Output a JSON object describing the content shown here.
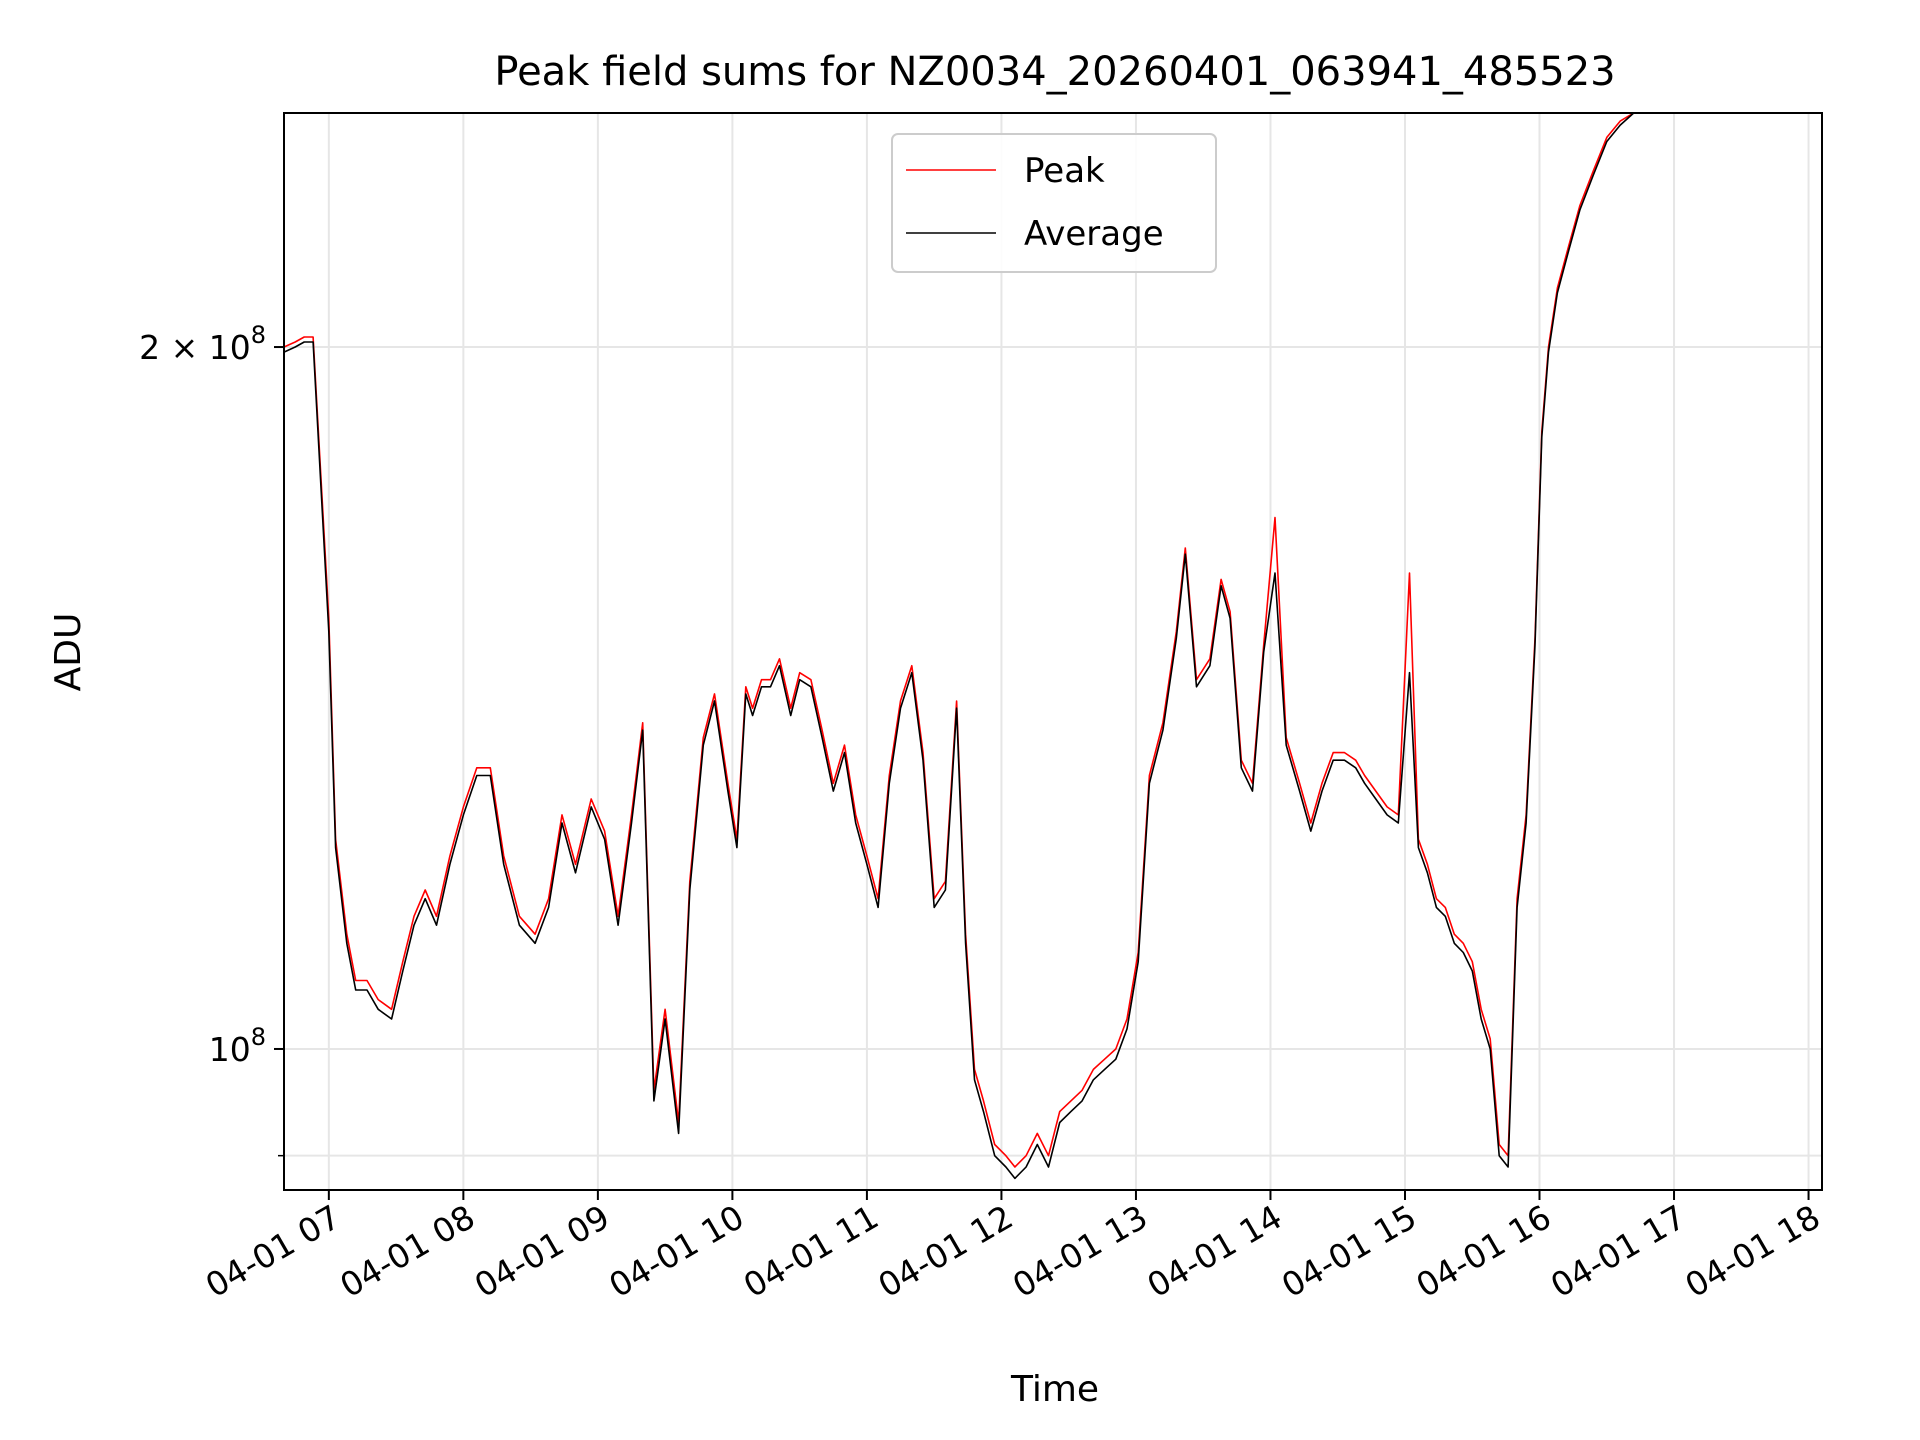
{
  "chart_data": {
    "type": "line",
    "title": "Peak field sums for NZ0034_20260401_063941_485523",
    "xlabel": "Time",
    "ylabel": "ADU",
    "yscale": "log",
    "xlim": [
      "04-01 06:40",
      "04-01 18:06"
    ],
    "ylim": [
      87000000,
      252000000
    ],
    "grid": true,
    "legend_position": "top-center",
    "xticks": [
      "04-01 07",
      "04-01 08",
      "04-01 09",
      "04-01 10",
      "04-01 11",
      "04-01 12",
      "04-01 13",
      "04-01 14",
      "04-01 15",
      "04-01 16",
      "04-01 17",
      "04-01 18"
    ],
    "yticks": [
      {
        "value": 100000000,
        "mantissa": "",
        "exponent": "8"
      },
      {
        "value": 200000000,
        "mantissa": "2",
        "exponent": "8"
      }
    ],
    "x": [
      "06:40",
      "06:45",
      "06:49",
      "06:53",
      "07:00",
      "07:03",
      "07:08",
      "07:12",
      "07:17",
      "07:22",
      "07:28",
      "07:33",
      "07:38",
      "07:43",
      "07:48",
      "07:54",
      "08:00",
      "08:06",
      "08:12",
      "08:18",
      "08:25",
      "08:32",
      "08:38",
      "08:44",
      "08:50",
      "08:57",
      "09:03",
      "09:09",
      "09:15",
      "09:20",
      "09:25",
      "09:30",
      "09:36",
      "09:41",
      "09:47",
      "09:52",
      "09:58",
      "10:02",
      "10:06",
      "10:09",
      "10:13",
      "10:17",
      "10:21",
      "10:26",
      "10:30",
      "10:35",
      "10:40",
      "10:45",
      "10:50",
      "10:55",
      "11:00",
      "11:05",
      "11:10",
      "11:15",
      "11:20",
      "11:25",
      "11:30",
      "11:35",
      "11:40",
      "11:44",
      "11:48",
      "11:52",
      "11:57",
      "12:02",
      "12:06",
      "12:11",
      "12:16",
      "12:21",
      "12:26",
      "12:31",
      "12:36",
      "12:41",
      "12:46",
      "12:51",
      "12:56",
      "13:01",
      "13:06",
      "13:12",
      "13:18",
      "13:22",
      "13:27",
      "13:33",
      "13:38",
      "13:42",
      "13:47",
      "13:52",
      "13:57",
      "14:02",
      "14:07",
      "14:13",
      "14:18",
      "14:23",
      "14:28",
      "14:33",
      "14:38",
      "14:42",
      "14:47",
      "14:52",
      "14:57",
      "15:02",
      "15:06",
      "15:10",
      "15:14",
      "15:18",
      "15:22",
      "15:26",
      "15:30",
      "15:34",
      "15:38",
      "15:42",
      "15:46",
      "15:50",
      "15:54",
      "15:58",
      "16:01",
      "16:04",
      "16:08",
      "16:13",
      "16:18",
      "16:24",
      "16:30",
      "16:36",
      "16:42",
      "16:48",
      "16:52",
      "16:57",
      "17:02",
      "17:08",
      "17:12",
      "17:16",
      "17:20",
      "17:24",
      "17:28",
      "17:32",
      "17:36",
      "17:40",
      "17:44",
      "17:48",
      "17:52",
      "17:56",
      "18:00",
      "18:04",
      "18:06"
    ],
    "series": [
      {
        "name": "Peak",
        "color": "#ff0000",
        "values": [
          200000000,
          201000000,
          202000000,
          202000000,
          153000000,
          123000000,
          112000000,
          107000000,
          107000000,
          105000000,
          104000000,
          109000000,
          114000000,
          117000000,
          114000000,
          121000000,
          127000000,
          132000000,
          132000000,
          121000000,
          114000000,
          112000000,
          116000000,
          126000000,
          120000000,
          128000000,
          124000000,
          114000000,
          126000000,
          138000000,
          96000000,
          104000000,
          93000000,
          118000000,
          136000000,
          142000000,
          130000000,
          123000000,
          143000000,
          140000000,
          144000000,
          144000000,
          147000000,
          140000000,
          145000000,
          144000000,
          137000000,
          130000000,
          135000000,
          126000000,
          121000000,
          116000000,
          131000000,
          141000000,
          146000000,
          134000000,
          116000000,
          118000000,
          141000000,
          112000000,
          98000000,
          95000000,
          91000000,
          90000000,
          89000000,
          90000000,
          92000000,
          90000000,
          94000000,
          95000000,
          96000000,
          98000000,
          99000000,
          100000000,
          103000000,
          110000000,
          131000000,
          138000000,
          151000000,
          164000000,
          144000000,
          147000000,
          159000000,
          154000000,
          133000000,
          130000000,
          149000000,
          169000000,
          136000000,
          130000000,
          125000000,
          130000000,
          134000000,
          134000000,
          133000000,
          131000000,
          129000000,
          127000000,
          126000000,
          160000000,
          123000000,
          120000000,
          116000000,
          115000000,
          112000000,
          111000000,
          109000000,
          104000000,
          101000000,
          91000000,
          90000000,
          116000000,
          126000000,
          150000000,
          184000000,
          200000000,
          212000000,
          221000000,
          230000000,
          238000000,
          246000000,
          250000000,
          252000000,
          252000000,
          252000000,
          252000000,
          252000000,
          252000000,
          252000000,
          252000000,
          252000000,
          252000000,
          252000000,
          252000000,
          252000000,
          252000000,
          252000000,
          252000000,
          252000000,
          252000000,
          252000000,
          252000000,
          252000000
        ]
      },
      {
        "name": "Average",
        "color": "#000000",
        "values": [
          199000000,
          200000000,
          201000000,
          201000000,
          151000000,
          122000000,
          111000000,
          106000000,
          106000000,
          104000000,
          103000000,
          108000000,
          113000000,
          116000000,
          113000000,
          120000000,
          126000000,
          131000000,
          131000000,
          120000000,
          113000000,
          111000000,
          115000000,
          125000000,
          119000000,
          127000000,
          123000000,
          113000000,
          125000000,
          137000000,
          95000000,
          103000000,
          92000000,
          117000000,
          135000000,
          141000000,
          129000000,
          122000000,
          142000000,
          139000000,
          143000000,
          143000000,
          146000000,
          139000000,
          144000000,
          143000000,
          136000000,
          129000000,
          134000000,
          125000000,
          120000000,
          115000000,
          130000000,
          140000000,
          145000000,
          133000000,
          115000000,
          117000000,
          140000000,
          111000000,
          97000000,
          94000000,
          90000000,
          89000000,
          88000000,
          89000000,
          91000000,
          89000000,
          93000000,
          94000000,
          95000000,
          97000000,
          98000000,
          99000000,
          102000000,
          109000000,
          130000000,
          137000000,
          150000000,
          163000000,
          143000000,
          146000000,
          158000000,
          153000000,
          132000000,
          129000000,
          148000000,
          160000000,
          135000000,
          129000000,
          124000000,
          129000000,
          133000000,
          133000000,
          132000000,
          130000000,
          128000000,
          126000000,
          125000000,
          145000000,
          122000000,
          119000000,
          115000000,
          114000000,
          111000000,
          110000000,
          108000000,
          103000000,
          100000000,
          90000000,
          89000000,
          115000000,
          125000000,
          149000000,
          183000000,
          199000000,
          211000000,
          220000000,
          229000000,
          237000000,
          245000000,
          249000000,
          252000000,
          252000000,
          252000000,
          252000000,
          252000000,
          252000000,
          252000000,
          252000000,
          252000000,
          252000000,
          252000000,
          252000000,
          252000000,
          252000000,
          252000000,
          252000000,
          252000000,
          252000000,
          252000000,
          252000000,
          252000000
        ]
      }
    ]
  }
}
